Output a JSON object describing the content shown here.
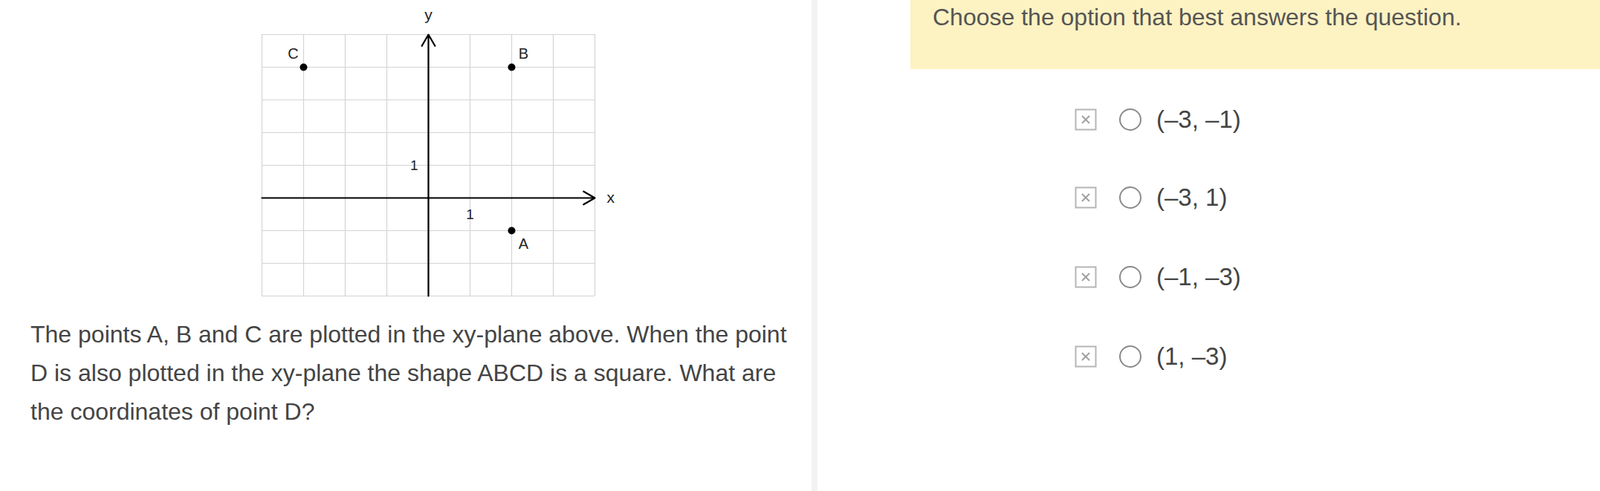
{
  "chart_data": {
    "type": "scatter",
    "x_label": "x",
    "y_label": "y",
    "x": [
      2,
      2,
      -3
    ],
    "values": [
      -1,
      4,
      4
    ],
    "point_labels": [
      "A",
      "B",
      "C"
    ],
    "color": "#000000",
    "xlim": [
      -4,
      4
    ],
    "ylim": [
      -3,
      5
    ],
    "xticks": [
      1
    ],
    "yticks": [
      1
    ],
    "grid": true
  },
  "question": "The points A, B and C are plotted in the xy-plane above. When the point D is also plotted in the xy-plane the shape ABCD is a square. What are the coordinates of point D?",
  "instruction": "Choose the option that best answers the question.",
  "options": [
    "(–3, –1)",
    "(–3, 1)",
    "(–1, –3)",
    "(1, –3)"
  ]
}
